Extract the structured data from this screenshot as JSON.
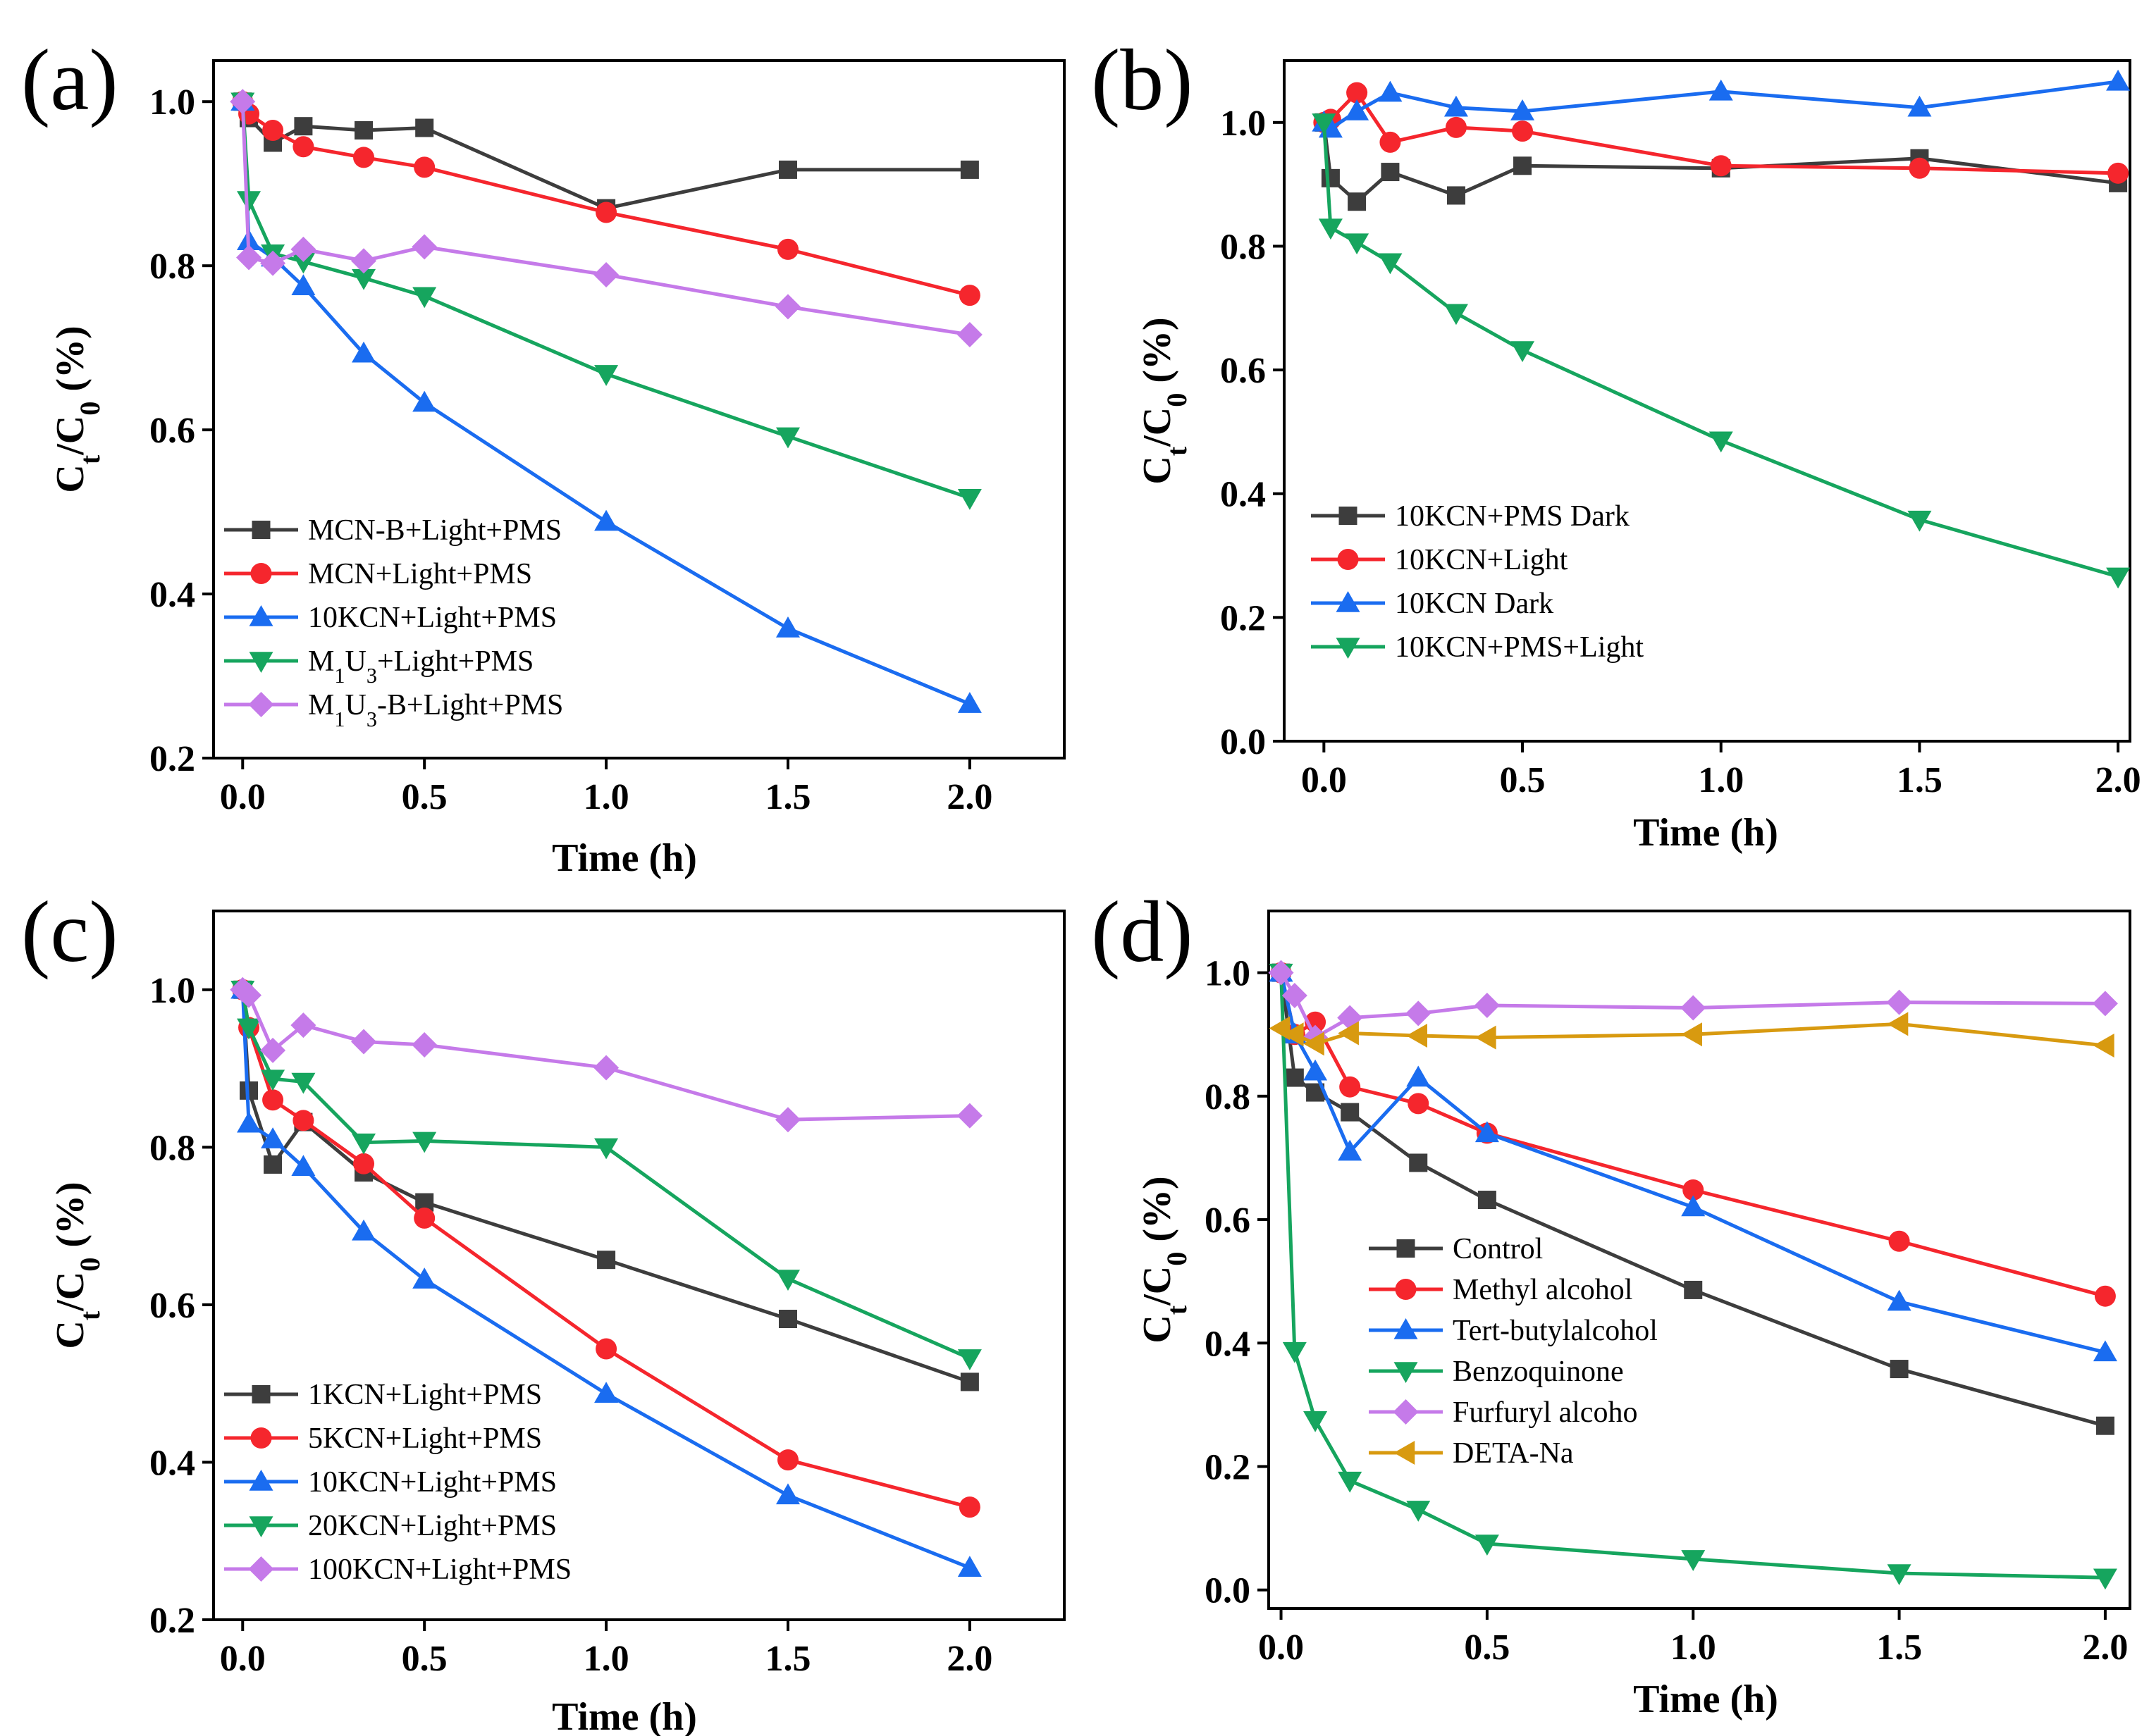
{
  "chart_data": [
    {
      "type": "line",
      "panel_label": "(a)",
      "xlabel": "Time (h)",
      "ylabel": "C_t/C_0 (%)",
      "xlim": [
        -0.08,
        2.26
      ],
      "ylim": [
        0.2,
        1.05
      ],
      "xticks": [
        "0.0",
        "0.5",
        "1.0",
        "1.5",
        "2.0"
      ],
      "yticks": [
        "0.2",
        "0.4",
        "0.6",
        "0.8",
        "1.0"
      ],
      "legend_position": "bottom-left",
      "series": [
        {
          "name": "MCN-B+Light+PMS",
          "label": {
            "main": "MCN-B+Light+PMS"
          },
          "color": "#3d3d3d",
          "marker": "square",
          "x": [
            0,
            0.017,
            0.083,
            0.167,
            0.333,
            0.5,
            1.0,
            1.5,
            2.0
          ],
          "y": [
            1.0,
            0.98,
            0.95,
            0.97,
            0.965,
            0.968,
            0.87,
            0.917,
            0.917
          ]
        },
        {
          "name": "MCN+Light+PMS",
          "label": {
            "main": "MCN+Light+PMS"
          },
          "color": "#f5262d",
          "marker": "circle",
          "x": [
            0,
            0.017,
            0.083,
            0.167,
            0.333,
            0.5,
            1.0,
            1.5,
            2.0
          ],
          "y": [
            1.0,
            0.985,
            0.965,
            0.945,
            0.932,
            0.92,
            0.865,
            0.82,
            0.764
          ]
        },
        {
          "name": "10KCN+Light+PMS",
          "label": {
            "main": "10KCN+Light+PMS"
          },
          "color": "#1a6cf0",
          "marker": "triangle-up",
          "x": [
            0,
            0.017,
            0.083,
            0.167,
            0.333,
            0.5,
            1.0,
            1.5,
            2.0
          ],
          "y": [
            1.0,
            0.83,
            0.81,
            0.775,
            0.693,
            0.633,
            0.488,
            0.358,
            0.266
          ]
        },
        {
          "name": "M1U3+Light+PMS",
          "label": {
            "main": "M",
            "sub1": "1",
            "mid": "U",
            "sub2": "3",
            "rest": "+Light+PMS"
          },
          "color": "#16a55e",
          "marker": "triangle-down",
          "x": [
            0,
            0.017,
            0.083,
            0.167,
            0.333,
            0.5,
            1.0,
            1.5,
            2.0
          ],
          "y": [
            1.0,
            0.88,
            0.815,
            0.805,
            0.785,
            0.763,
            0.668,
            0.592,
            0.517
          ]
        },
        {
          "name": "M1U3-B+Light+PMS",
          "label": {
            "main": "M",
            "sub1": "1",
            "mid": "U",
            "sub2": "3",
            "rest": "-B+Light+PMS"
          },
          "color": "#c57ae9",
          "marker": "diamond",
          "x": [
            0,
            0.017,
            0.083,
            0.167,
            0.333,
            0.5,
            1.0,
            1.5,
            2.0
          ],
          "y": [
            1.0,
            0.81,
            0.803,
            0.82,
            0.806,
            0.823,
            0.789,
            0.75,
            0.716
          ]
        }
      ]
    },
    {
      "type": "line",
      "panel_label": "(b)",
      "xlabel": "Time (h)",
      "ylabel": "C_t/C_0 (%)",
      "xlim": [
        -0.1,
        2.03
      ],
      "ylim": [
        0.0,
        1.1
      ],
      "xticks": [
        "0.0",
        "0.5",
        "1.0",
        "1.5",
        "2.0"
      ],
      "yticks": [
        "0.0",
        "0.2",
        "0.4",
        "0.6",
        "0.8",
        "1.0"
      ],
      "legend_position": "bottom-left",
      "series": [
        {
          "name": "10KCN+PMS Dark",
          "label": {
            "main": "10KCN+PMS Dark"
          },
          "color": "#3d3d3d",
          "marker": "square",
          "x": [
            0,
            0.017,
            0.083,
            0.167,
            0.333,
            0.5,
            1.0,
            1.5,
            2.0
          ],
          "y": [
            1.0,
            0.91,
            0.872,
            0.92,
            0.882,
            0.93,
            0.926,
            0.942,
            0.902
          ]
        },
        {
          "name": "10KCN+Light",
          "label": {
            "main": "10KCN+Light"
          },
          "color": "#f5262d",
          "marker": "circle",
          "x": [
            0,
            0.017,
            0.083,
            0.167,
            0.333,
            0.5,
            1.0,
            1.5,
            2.0
          ],
          "y": [
            1.0,
            1.005,
            1.048,
            0.968,
            0.992,
            0.986,
            0.93,
            0.926,
            0.918
          ]
        },
        {
          "name": "10KCN Dark",
          "label": {
            "main": "10KCN Dark"
          },
          "color": "#1a6cf0",
          "marker": "triangle-up",
          "x": [
            0,
            0.017,
            0.083,
            0.167,
            0.333,
            0.5,
            1.0,
            1.5,
            2.0
          ],
          "y": [
            1.0,
            0.99,
            1.018,
            1.048,
            1.024,
            1.018,
            1.05,
            1.024,
            1.066
          ]
        },
        {
          "name": "10KCN+PMS+Light",
          "label": {
            "main": "10KCN+PMS+Light"
          },
          "color": "#16a55e",
          "marker": "triangle-down",
          "x": [
            0,
            0.017,
            0.083,
            0.167,
            0.333,
            0.5,
            1.0,
            1.5,
            2.0
          ],
          "y": [
            1.0,
            0.83,
            0.806,
            0.774,
            0.692,
            0.632,
            0.486,
            0.358,
            0.266
          ]
        }
      ]
    },
    {
      "type": "line",
      "panel_label": "(c)",
      "xlabel": "Time (h)",
      "ylabel": "C_t/C_0 (%)",
      "xlim": [
        -0.08,
        2.26
      ],
      "ylim": [
        0.2,
        1.1
      ],
      "xticks": [
        "0.0",
        "0.5",
        "1.0",
        "1.5",
        "2.0"
      ],
      "yticks": [
        "0.2",
        "0.4",
        "0.6",
        "0.8",
        "1.0"
      ],
      "legend_position": "bottom-left",
      "series": [
        {
          "name": "1KCN+Light+PMS",
          "label": {
            "main": "1KCN+Light+PMS"
          },
          "color": "#3d3d3d",
          "marker": "square",
          "x": [
            0,
            0.017,
            0.083,
            0.167,
            0.333,
            0.5,
            1.0,
            1.5,
            2.0
          ],
          "y": [
            1.0,
            0.872,
            0.778,
            0.832,
            0.768,
            0.73,
            0.657,
            0.582,
            0.502
          ]
        },
        {
          "name": "5KCN+Light+PMS",
          "label": {
            "main": "5KCN+Light+PMS"
          },
          "color": "#f5262d",
          "marker": "circle",
          "x": [
            0,
            0.017,
            0.083,
            0.167,
            0.333,
            0.5,
            1.0,
            1.5,
            2.0
          ],
          "y": [
            1.0,
            0.952,
            0.86,
            0.834,
            0.779,
            0.71,
            0.544,
            0.403,
            0.343
          ]
        },
        {
          "name": "10KCN+Light+PMS",
          "label": {
            "main": "10KCN+Light+PMS"
          },
          "color": "#1a6cf0",
          "marker": "triangle-up",
          "x": [
            0,
            0.017,
            0.083,
            0.167,
            0.333,
            0.5,
            1.0,
            1.5,
            2.0
          ],
          "y": [
            1.0,
            0.83,
            0.81,
            0.775,
            0.693,
            0.632,
            0.487,
            0.358,
            0.266
          ]
        },
        {
          "name": "20KCN+Light+PMS",
          "label": {
            "main": "20KCN+Light+PMS"
          },
          "color": "#16a55e",
          "marker": "triangle-down",
          "x": [
            0,
            0.017,
            0.083,
            0.167,
            0.333,
            0.5,
            1.0,
            1.5,
            2.0
          ],
          "y": [
            1.0,
            0.952,
            0.887,
            0.883,
            0.806,
            0.808,
            0.8,
            0.633,
            0.532
          ]
        },
        {
          "name": "100KCN+Light+PMS",
          "label": {
            "main": "100KCN+Light+PMS"
          },
          "color": "#c57ae9",
          "marker": "diamond",
          "x": [
            0,
            0.017,
            0.083,
            0.167,
            0.333,
            0.5,
            1.0,
            1.5,
            2.0
          ],
          "y": [
            1.0,
            0.993,
            0.923,
            0.955,
            0.934,
            0.93,
            0.901,
            0.835,
            0.84
          ]
        }
      ]
    },
    {
      "type": "line",
      "panel_label": "(d)",
      "xlabel": "Time (h)",
      "ylabel": "C_t/C_0 (%)",
      "xlim": [
        -0.03,
        2.06
      ],
      "ylim": [
        -0.03,
        1.1
      ],
      "xticks": [
        "0.0",
        "0.5",
        "1.0",
        "1.5",
        "2.0"
      ],
      "yticks": [
        "0.0",
        "0.2",
        "0.4",
        "0.6",
        "0.8",
        "1.0"
      ],
      "legend_position": "center-left",
      "series": [
        {
          "name": "Control",
          "label": {
            "main": "Control"
          },
          "color": "#3d3d3d",
          "marker": "square",
          "x": [
            0,
            0.033,
            0.083,
            0.167,
            0.333,
            0.5,
            1.0,
            1.5,
            2.0
          ],
          "y": [
            1.0,
            0.83,
            0.806,
            0.774,
            0.692,
            0.632,
            0.486,
            0.358,
            0.266
          ]
        },
        {
          "name": "Methyl alcohol",
          "label": {
            "main": "Methyl alcohol"
          },
          "color": "#f5262d",
          "marker": "circle",
          "x": [
            0,
            0.033,
            0.083,
            0.167,
            0.333,
            0.5,
            1.0,
            1.5,
            2.0
          ],
          "y": [
            1.0,
            0.9,
            0.92,
            0.815,
            0.788,
            0.74,
            0.648,
            0.565,
            0.476
          ]
        },
        {
          "name": "Tert-butylalcohol",
          "label": {
            "main": "Tert-butylalcohol"
          },
          "color": "#1a6cf0",
          "marker": "triangle-up",
          "x": [
            0,
            0.033,
            0.083,
            0.167,
            0.333,
            0.5,
            1.0,
            1.5,
            2.0
          ],
          "y": [
            1.0,
            0.9,
            0.84,
            0.71,
            0.83,
            0.74,
            0.62,
            0.467,
            0.385
          ]
        },
        {
          "name": "Benzoquinone",
          "label": {
            "main": "Benzoquinone"
          },
          "color": "#16a55e",
          "marker": "triangle-down",
          "x": [
            0,
            0.033,
            0.083,
            0.167,
            0.333,
            0.5,
            1.0,
            1.5,
            2.0
          ],
          "y": [
            1.0,
            0.387,
            0.275,
            0.177,
            0.13,
            0.075,
            0.05,
            0.027,
            0.02
          ]
        },
        {
          "name": "Furfuryl alcoho",
          "label": {
            "main": "Furfuryl alcoho"
          },
          "color": "#c57ae9",
          "marker": "diamond",
          "x": [
            0,
            0.033,
            0.083,
            0.167,
            0.333,
            0.5,
            1.0,
            1.5,
            2.0
          ],
          "y": [
            1.0,
            0.963,
            0.895,
            0.927,
            0.934,
            0.947,
            0.943,
            0.952,
            0.95
          ]
        },
        {
          "name": "DETA-Na",
          "label": {
            "main": "DETA-Na"
          },
          "color": "#d89a10",
          "marker": "triangle-left",
          "x": [
            0,
            0.033,
            0.083,
            0.167,
            0.333,
            0.5,
            1.0,
            1.5,
            2.0
          ],
          "y": [
            0.91,
            0.9,
            0.885,
            0.902,
            0.898,
            0.895,
            0.9,
            0.917,
            0.882
          ]
        }
      ]
    }
  ]
}
